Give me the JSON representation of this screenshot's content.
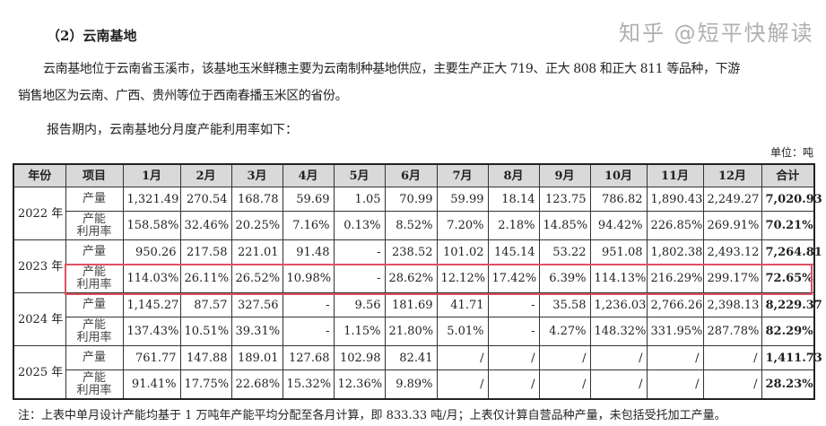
{
  "heading": "（2）云南基地",
  "paragraph1_line1": "云南基地位于云南省玉溪市，该基地玉米鲜穗主要为云南制种基地供应，主要生产正大 719、正大 808 和正大 811 等品种，下游",
  "paragraph1_line2": "销售地区为云南、广西、贵州等位于西南春播玉米区的省份。",
  "paragraph2": "报告期内，云南基地分月度产能利用率如下：",
  "unit": "单位：吨",
  "table": {
    "headers": [
      "年份",
      "项目",
      "1月",
      "2月",
      "3月",
      "4月",
      "5月",
      "6月",
      "7月",
      "8月",
      "9月",
      "10月",
      "11月",
      "12月",
      "合计"
    ],
    "rows": [
      {
        "year": "2022 年",
        "item": "产量",
        "values": [
          "1,321.49",
          "270.54",
          "168.78",
          "59.69",
          "1.05",
          "70.99",
          "59.99",
          "18.14",
          "123.75",
          "786.82",
          "1,890.43",
          "2,249.27"
        ],
        "total": "7,020.93"
      },
      {
        "item": "产能利用率",
        "values": [
          "158.58%",
          "32.46%",
          "20.25%",
          "7.16%",
          "0.13%",
          "8.52%",
          "7.20%",
          "2.18%",
          "14.85%",
          "94.42%",
          "226.85%",
          "269.91%"
        ],
        "total": "70.21%"
      },
      {
        "year": "2023 年",
        "item": "产量",
        "values": [
          "950.26",
          "217.58",
          "221.01",
          "91.48",
          "-",
          "238.52",
          "101.02",
          "145.14",
          "53.22",
          "951.08",
          "1,802.38",
          "2,493.12"
        ],
        "total": "7,264.81"
      },
      {
        "item": "产能利用率",
        "values": [
          "114.03%",
          "26.11%",
          "26.52%",
          "10.98%",
          "-",
          "28.62%",
          "12.12%",
          "17.42%",
          "6.39%",
          "114.13%",
          "216.29%",
          "299.17%"
        ],
        "total": "72.65%"
      },
      {
        "year": "2024 年",
        "item": "产量",
        "values": [
          "1,145.27",
          "87.57",
          "327.56",
          "-",
          "9.56",
          "181.69",
          "41.71",
          "-",
          "35.58",
          "1,236.03",
          "2,766.26",
          "2,398.13"
        ],
        "total": "8,229.37"
      },
      {
        "item": "产能利用率",
        "values": [
          "137.43%",
          "10.51%",
          "39.31%",
          "-",
          "1.15%",
          "21.80%",
          "5.01%",
          "-",
          "4.27%",
          "148.32%",
          "331.95%",
          "287.78%"
        ],
        "total": "82.29%"
      },
      {
        "year": "2025 年",
        "item": "产量",
        "values": [
          "761.77",
          "147.88",
          "189.01",
          "127.68",
          "102.98",
          "82.41",
          "/",
          "/",
          "/",
          "/",
          "/",
          "/"
        ],
        "total": "1,411.73"
      },
      {
        "item": "产能利用率",
        "values": [
          "91.41%",
          "17.75%",
          "22.68%",
          "15.32%",
          "12.36%",
          "9.89%",
          "/",
          "/",
          "/",
          "/",
          "/",
          "/"
        ],
        "total": "28.23%"
      }
    ]
  },
  "note": "注：上表中单月设计产能均基于 1 万吨年产能平均分配至各月计算，即 833.33 吨/月；上表仅计算自营品种产量，未包括受托加工产量。",
  "watermark": "知乎 @短平快解读",
  "highlight_color": "#e05060"
}
